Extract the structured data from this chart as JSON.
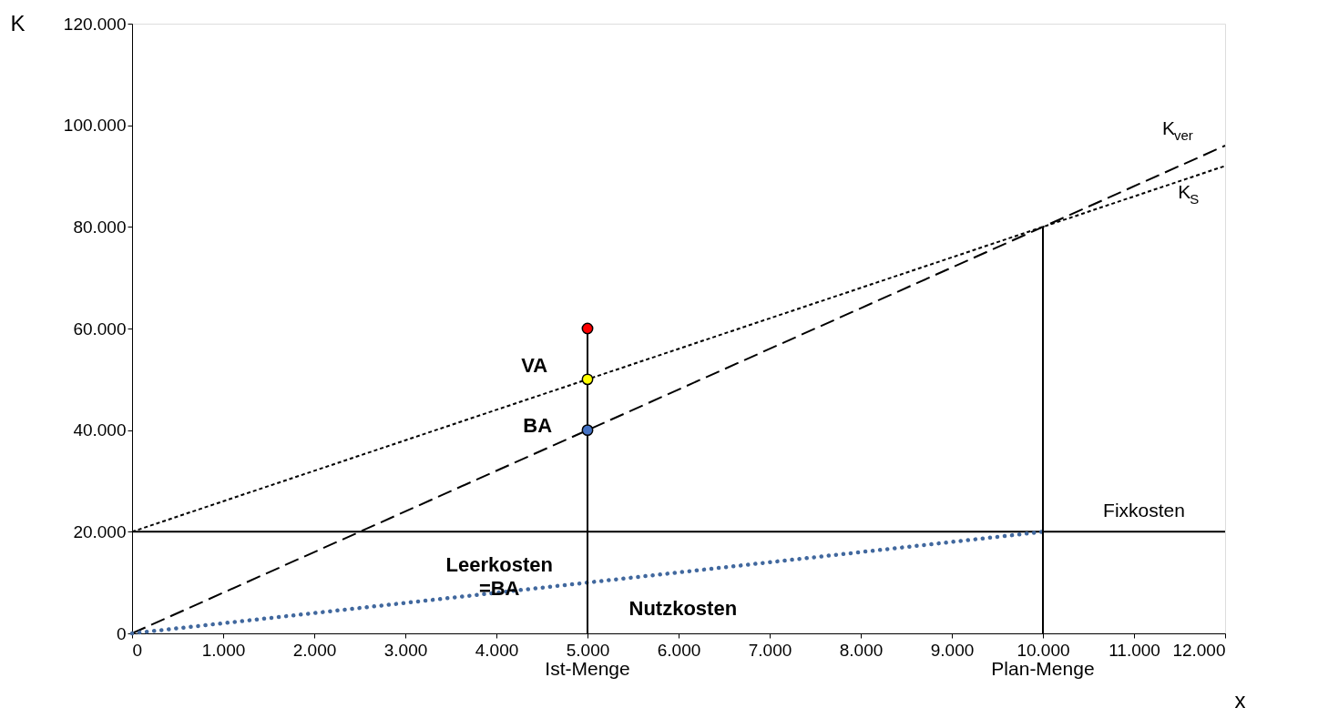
{
  "chart_data": {
    "type": "line",
    "xlabel": "x",
    "ylabel": "K",
    "xlim": [
      0,
      12000
    ],
    "ylim": [
      0,
      120000
    ],
    "xticks": [
      0,
      {
        "value": 1000,
        "label": "1.000"
      },
      {
        "value": 2000,
        "label": "2.000"
      },
      {
        "value": 3000,
        "label": "3.000"
      },
      {
        "value": 4000,
        "label": "4.000"
      },
      {
        "value": 5000,
        "label": "5.000"
      },
      {
        "value": 6000,
        "label": "6.000"
      },
      {
        "value": 7000,
        "label": "7.000"
      },
      {
        "value": 8000,
        "label": "8.000"
      },
      {
        "value": 9000,
        "label": "9.000"
      },
      {
        "value": 10000,
        "label": "10.000"
      },
      {
        "value": 11000,
        "label": "11.000"
      },
      {
        "value": 12000,
        "label": "12.000"
      }
    ],
    "yticks": [
      0,
      {
        "value": 20000,
        "label": "20.000"
      },
      {
        "value": 40000,
        "label": "40.000"
      },
      {
        "value": 60000,
        "label": "60.000"
      },
      {
        "value": 80000,
        "label": "80.000"
      },
      {
        "value": 100000,
        "label": "100.000"
      },
      {
        "value": 120000,
        "label": "120.000"
      }
    ],
    "grid": false,
    "legend": false,
    "series": [
      {
        "name": "K$_{ver}$",
        "color": "#000000",
        "line_style": "dashed",
        "x": [
          0,
          12000
        ],
        "values": [
          0,
          96000
        ]
      },
      {
        "name": "K$_{S}$",
        "color": "#000000",
        "line_style": "dotted",
        "x": [
          0,
          12000
        ],
        "values": [
          20000,
          92000
        ]
      },
      {
        "name": "Fixkosten",
        "color": "#000000",
        "line_style": "solid",
        "x": [
          0,
          12000
        ],
        "values": [
          20000,
          20000
        ]
      },
      {
        "color": "#41689e",
        "line_style": "dotted",
        "x": [
          0,
          10000
        ],
        "values": [
          0,
          20000
        ]
      },
      {
        "color": "#000000",
        "line_style": "solid",
        "x": [
          5000,
          5000
        ],
        "values": [
          0,
          60000
        ]
      },
      {
        "color": "#000000",
        "line_style": "solid",
        "x": [
          10000,
          10000
        ],
        "values": [
          0,
          80000
        ]
      },
      {
        "type": "scatter",
        "marker": "circle",
        "x": [
          5000,
          5000,
          5000
        ],
        "values": [
          60000,
          50000,
          40000
        ],
        "colors": [
          "#ff0000",
          "#ffff00",
          "#4472c4"
        ]
      }
    ],
    "annotations": [
      "VA",
      "BA",
      "Leerkosten\n=BA",
      "Nutzkosten",
      "Ist-Menge",
      "Plan-Menge"
    ]
  }
}
